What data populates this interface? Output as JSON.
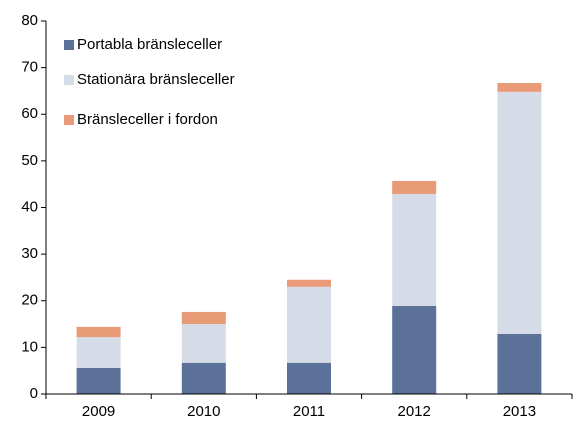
{
  "chart_data": {
    "type": "stacked_bar",
    "categories": [
      "2009",
      "2010",
      "2011",
      "2012",
      "2013"
    ],
    "series": [
      {
        "name": "Portabla bränsleceller",
        "color": "#5b7199",
        "values": [
          5.6,
          6.7,
          6.7,
          18.9,
          12.9
        ]
      },
      {
        "name": "Stationära bränsleceller",
        "color": "#d6dce7",
        "values": [
          6.6,
          8.3,
          16.3,
          24,
          51.9
        ]
      },
      {
        "name": "Bränsleceller i fordon",
        "color": "#e99b78",
        "values": [
          2.2,
          2.6,
          1.5,
          2.8,
          1.9
        ]
      }
    ],
    "ylim": [
      0,
      80
    ],
    "yticks": [
      0,
      10,
      20,
      30,
      40,
      50,
      60,
      70,
      80
    ],
    "grid": false,
    "legend": "top-left"
  }
}
